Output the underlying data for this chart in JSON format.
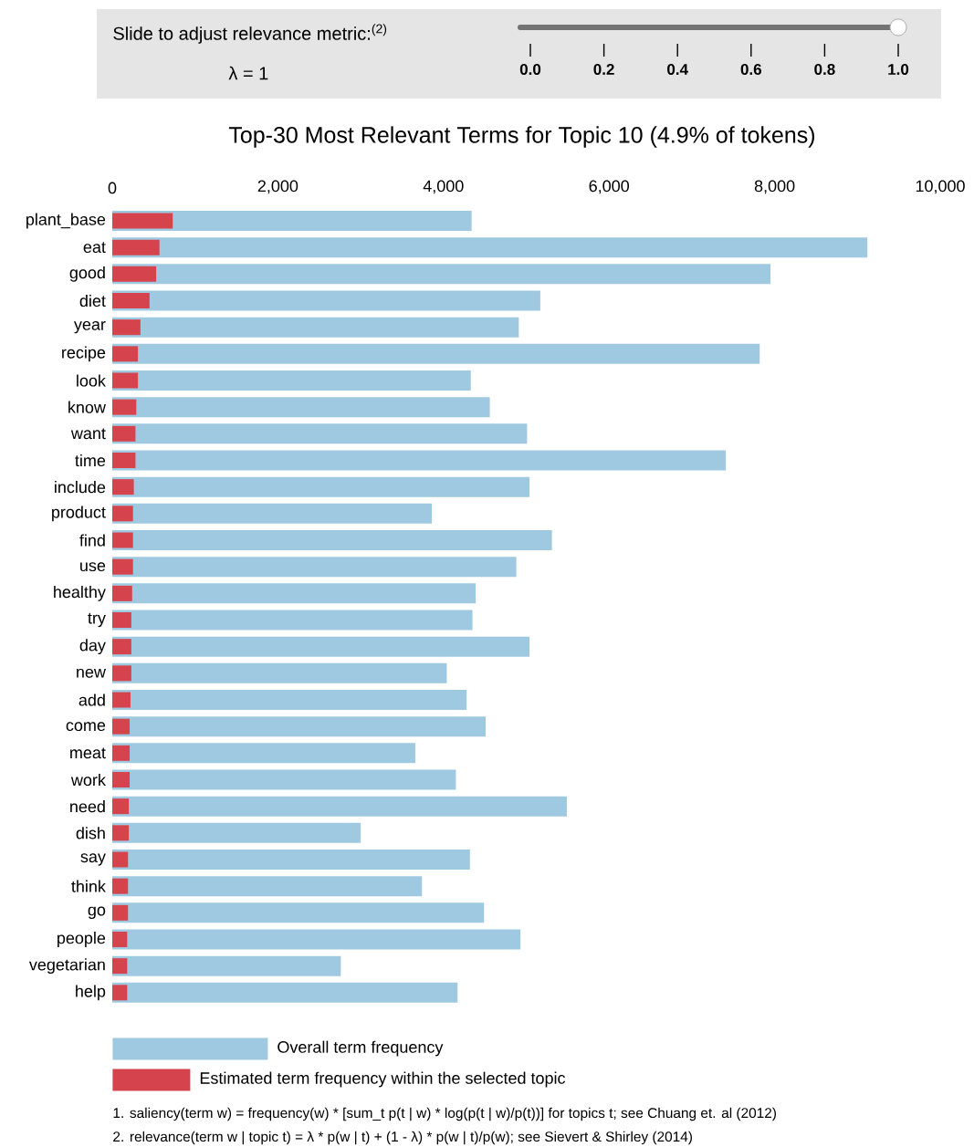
{
  "chart_data": {
    "type": "bar",
    "orientation": "horizontal",
    "stacked": false,
    "title": "Top-30 Most Relevant Terms for Topic 10 (4.9% of tokens)",
    "categories": [
      "plant_base",
      "eat",
      "good",
      "diet",
      "year",
      "recipe",
      "look",
      "know",
      "want",
      "time",
      "include",
      "product",
      "find",
      "use",
      "healthy",
      "try",
      "day",
      "new",
      "add",
      "come",
      "meat",
      "work",
      "need",
      "dish",
      "say",
      "think",
      "go",
      "people",
      "vegetarian",
      "help"
    ],
    "series": [
      {
        "name": "Overall term frequency",
        "color": "#9fc9e1",
        "values": [
          4340,
          9120,
          7950,
          5170,
          4910,
          7820,
          4330,
          4560,
          5010,
          7410,
          5040,
          3860,
          5310,
          4880,
          4390,
          4350,
          5040,
          4040,
          4280,
          4510,
          3660,
          4150,
          5490,
          3000,
          4320,
          3740,
          4490,
          4930,
          2760,
          4170
        ]
      },
      {
        "name": "Estimated term frequency within the selected topic",
        "color": "#d5434c",
        "values": [
          730,
          570,
          530,
          450,
          340,
          310,
          310,
          290,
          280,
          280,
          260,
          250,
          250,
          250,
          240,
          230,
          230,
          230,
          220,
          210,
          210,
          210,
          200,
          200,
          190,
          190,
          190,
          180,
          180,
          180
        ]
      }
    ],
    "xlim": [
      0,
      10000
    ],
    "xticks": [
      0,
      {
        "value": 2000,
        "label": "2,000"
      },
      {
        "value": 4000,
        "label": "4,000"
      },
      {
        "value": 6000,
        "label": "6,000"
      },
      {
        "value": 8000,
        "label": "8,000"
      },
      {
        "value": 10000,
        "label": "10,000"
      }
    ],
    "grid": false,
    "legend": "bottom",
    "annotations": [
      "Slide to adjust relevance metric:$^{(2)}$",
      "λ = 1",
      "0.0",
      "0.2",
      "0.4",
      "0.6",
      "0.8",
      "1.0",
      "1. saliency(term w) = frequency(w) * [sum_t p(t | w) * log(p(t | w)/p(t))] for topics t; see Chuang et. al (2012)",
      "2. relevance(term w | topic t) = λ * p(w | t) + (1 - λ) * p(w | t)/p(w); see Sievert & Shirley (2014)"
    ]
  }
}
